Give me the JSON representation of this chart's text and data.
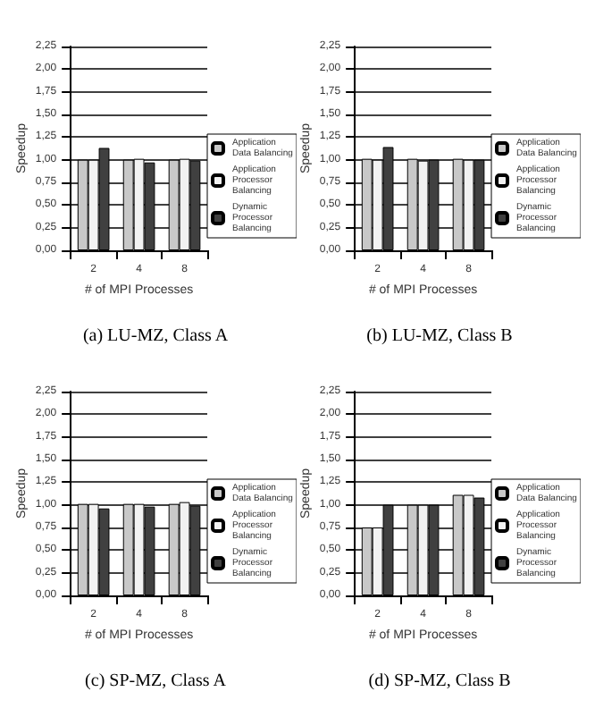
{
  "chart_data": [
    {
      "type": "bar",
      "title": "(a) LU-MZ, Class A",
      "xlabel": "# of MPI Processes",
      "ylabel": "Speedup",
      "categories": [
        "2",
        "4",
        "8"
      ],
      "series": [
        {
          "name": "Application Data Balancing",
          "color": "#c8c8c8",
          "values": [
            1.0,
            1.0,
            1.0
          ]
        },
        {
          "name": "Application Processor Balancing",
          "color": "#f2f2f2",
          "values": [
            1.0,
            1.01,
            1.01
          ]
        },
        {
          "name": "Dynamic Processor Balancing",
          "color": "#404040",
          "values": [
            1.13,
            0.97,
            0.99
          ]
        }
      ],
      "ylim": [
        0,
        2.25
      ],
      "yticks": [
        {
          "value": 0,
          "label": "0,00"
        },
        {
          "value": 0.25,
          "label": "0,25"
        },
        {
          "value": 0.5,
          "label": "0,50"
        },
        {
          "value": 0.75,
          "label": "0,75"
        },
        {
          "value": 1,
          "label": "1,00"
        },
        {
          "value": 1.25,
          "label": "1,25"
        },
        {
          "value": 1.5,
          "label": "1,50"
        },
        {
          "value": 1.75,
          "label": "1,75"
        },
        {
          "value": 2,
          "label": "2,00"
        },
        {
          "value": 2.25,
          "label": "2,25"
        }
      ],
      "grid": "y",
      "legend": "right"
    },
    {
      "type": "bar",
      "title": "(b) LU-MZ, Class B",
      "xlabel": "# of MPI Processes",
      "ylabel": "Speedup",
      "categories": [
        "2",
        "4",
        "8"
      ],
      "series": [
        {
          "name": "Application Data Balancing",
          "color": "#c8c8c8",
          "values": [
            1.01,
            1.01,
            1.01
          ]
        },
        {
          "name": "Application Processor Balancing",
          "color": "#f2f2f2",
          "values": [
            1.0,
            0.99,
            1.0
          ]
        },
        {
          "name": "Dynamic Processor Balancing",
          "color": "#404040",
          "values": [
            1.14,
            1.0,
            1.0
          ]
        }
      ],
      "ylim": [
        0,
        2.25
      ],
      "yticks": [
        {
          "value": 0,
          "label": "0,00"
        },
        {
          "value": 0.25,
          "label": "0,25"
        },
        {
          "value": 0.5,
          "label": "0,50"
        },
        {
          "value": 0.75,
          "label": "0,75"
        },
        {
          "value": 1,
          "label": "1,00"
        },
        {
          "value": 1.25,
          "label": "1,25"
        },
        {
          "value": 1.5,
          "label": "1,50"
        },
        {
          "value": 1.75,
          "label": "1,75"
        },
        {
          "value": 2,
          "label": "2,00"
        },
        {
          "value": 2.25,
          "label": "2,25"
        }
      ],
      "grid": "y",
      "legend": "right"
    },
    {
      "type": "bar",
      "title": "(c) SP-MZ, Class A",
      "xlabel": "# of MPI Processes",
      "ylabel": "Speedup",
      "categories": [
        "2",
        "4",
        "8"
      ],
      "series": [
        {
          "name": "Application Data Balancing",
          "color": "#c8c8c8",
          "values": [
            1.01,
            1.01,
            1.01
          ]
        },
        {
          "name": "Application Processor Balancing",
          "color": "#f2f2f2",
          "values": [
            1.01,
            1.01,
            1.03
          ]
        },
        {
          "name": "Dynamic Processor Balancing",
          "color": "#404040",
          "values": [
            0.96,
            0.98,
            0.99
          ]
        }
      ],
      "ylim": [
        0,
        2.25
      ],
      "yticks": [
        {
          "value": 0,
          "label": "0,00"
        },
        {
          "value": 0.25,
          "label": "0,25"
        },
        {
          "value": 0.5,
          "label": "0,50"
        },
        {
          "value": 0.75,
          "label": "0,75"
        },
        {
          "value": 1,
          "label": "1,00"
        },
        {
          "value": 1.25,
          "label": "1,25"
        },
        {
          "value": 1.5,
          "label": "1,50"
        },
        {
          "value": 1.75,
          "label": "1,75"
        },
        {
          "value": 2,
          "label": "2,00"
        },
        {
          "value": 2.25,
          "label": "2,25"
        }
      ],
      "grid": "y",
      "legend": "right"
    },
    {
      "type": "bar",
      "title": "(d) SP-MZ, Class B",
      "xlabel": "# of MPI Processes",
      "ylabel": "Speedup",
      "categories": [
        "2",
        "4",
        "8"
      ],
      "series": [
        {
          "name": "Application Data Balancing",
          "color": "#c8c8c8",
          "values": [
            0.75,
            1.0,
            1.11
          ]
        },
        {
          "name": "Application Processor Balancing",
          "color": "#f2f2f2",
          "values": [
            0.75,
            1.0,
            1.11
          ]
        },
        {
          "name": "Dynamic Processor Balancing",
          "color": "#404040",
          "values": [
            1.0,
            1.0,
            1.08
          ]
        }
      ],
      "ylim": [
        0,
        2.25
      ],
      "yticks": [
        {
          "value": 0,
          "label": "0,00"
        },
        {
          "value": 0.25,
          "label": "0,25"
        },
        {
          "value": 0.5,
          "label": "0,50"
        },
        {
          "value": 0.75,
          "label": "0,75"
        },
        {
          "value": 1,
          "label": "1,00"
        },
        {
          "value": 1.25,
          "label": "1,25"
        },
        {
          "value": 1.5,
          "label": "1,50"
        },
        {
          "value": 1.75,
          "label": "1,75"
        },
        {
          "value": 2,
          "label": "2,00"
        },
        {
          "value": 2.25,
          "label": "2,25"
        }
      ],
      "grid": "y",
      "legend": "right"
    }
  ]
}
